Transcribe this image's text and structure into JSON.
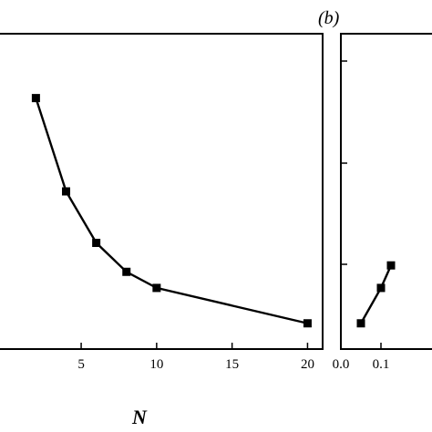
{
  "chart_data": [
    {
      "type": "line",
      "panel_label": "",
      "xlabel": "N",
      "ylabel": "",
      "xlim": [
        -0.5,
        21
      ],
      "xticks": [
        5,
        10,
        15,
        20
      ],
      "x": [
        2,
        4,
        6,
        8,
        10,
        20
      ],
      "y": [
        0.93,
        0.64,
        0.48,
        0.39,
        0.34,
        0.23
      ],
      "ylim": [
        0.15,
        1.13
      ],
      "grid": false,
      "marker": "square",
      "color": "#000000"
    },
    {
      "type": "line",
      "panel_label": "(b)",
      "xlabel": "",
      "ylabel": "",
      "xlim": [
        0.0,
        0.25
      ],
      "xticks": [
        "0.0",
        "0.1"
      ],
      "x": [
        0.05,
        0.1,
        0.125
      ],
      "y": [
        0.23,
        0.34,
        0.41
      ],
      "ylim": [
        0.15,
        1.13
      ],
      "grid": false,
      "marker": "square",
      "color": "#000000"
    }
  ]
}
